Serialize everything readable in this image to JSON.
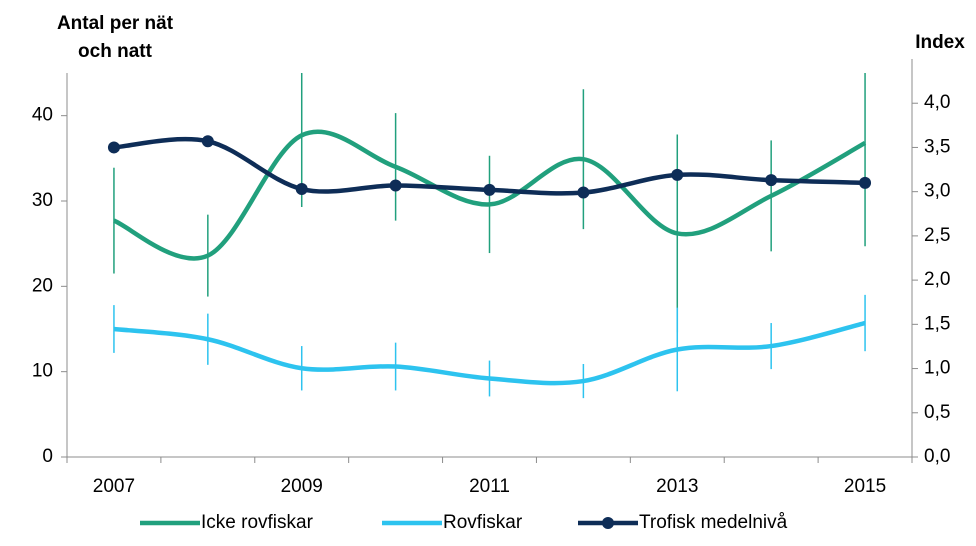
{
  "chart_data": {
    "type": "line",
    "y_label": [
      "Antal per nät",
      "och natt"
    ],
    "y2_label": "Index",
    "categories": [
      "2007",
      null,
      "2009",
      null,
      "2011",
      null,
      "2013",
      null,
      "2015"
    ],
    "ylim": [
      0,
      45
    ],
    "yticks": [
      0,
      10,
      20,
      30,
      40
    ],
    "y2lim": [
      0,
      4.5
    ],
    "y2ticks": [
      {
        "value": 0,
        "label": "0,0"
      },
      {
        "value": 0.5,
        "label": "0,5"
      },
      {
        "value": 1,
        "label": "1,0"
      },
      {
        "value": 1.5,
        "label": "1,5"
      },
      {
        "value": 2,
        "label": "2,0"
      },
      {
        "value": 2.5,
        "label": "2,5"
      },
      {
        "value": 3,
        "label": "3,0"
      },
      {
        "value": 3.5,
        "label": "3,5"
      },
      {
        "value": 4,
        "label": "4,0"
      }
    ],
    "series": [
      {
        "name": "Icke rovfiskar",
        "color": "#21a07d",
        "values": [
          27.7,
          23.6,
          37.7,
          34.0,
          29.6,
          34.9,
          26.2,
          30.6,
          36.8
        ],
        "errors": [
          6.2,
          4.8,
          8.4,
          6.3,
          5.7,
          8.2,
          11.6,
          6.5,
          12.1
        ]
      },
      {
        "name": "Rovfiskar",
        "color": "#2dc3ef",
        "values": [
          15.0,
          13.8,
          10.4,
          10.6,
          9.2,
          8.9,
          12.6,
          13.0,
          15.7
        ],
        "errors": [
          2.8,
          3.0,
          2.6,
          2.8,
          2.1,
          2.0,
          4.9,
          2.7,
          3.3
        ]
      },
      {
        "name": "Trofisk medelnivå",
        "color": "#0e2d57",
        "axis": "y2",
        "markers": true,
        "values": [
          3.5,
          3.57,
          3.03,
          3.07,
          3.02,
          2.99,
          3.19,
          3.13,
          3.1
        ]
      }
    ]
  }
}
